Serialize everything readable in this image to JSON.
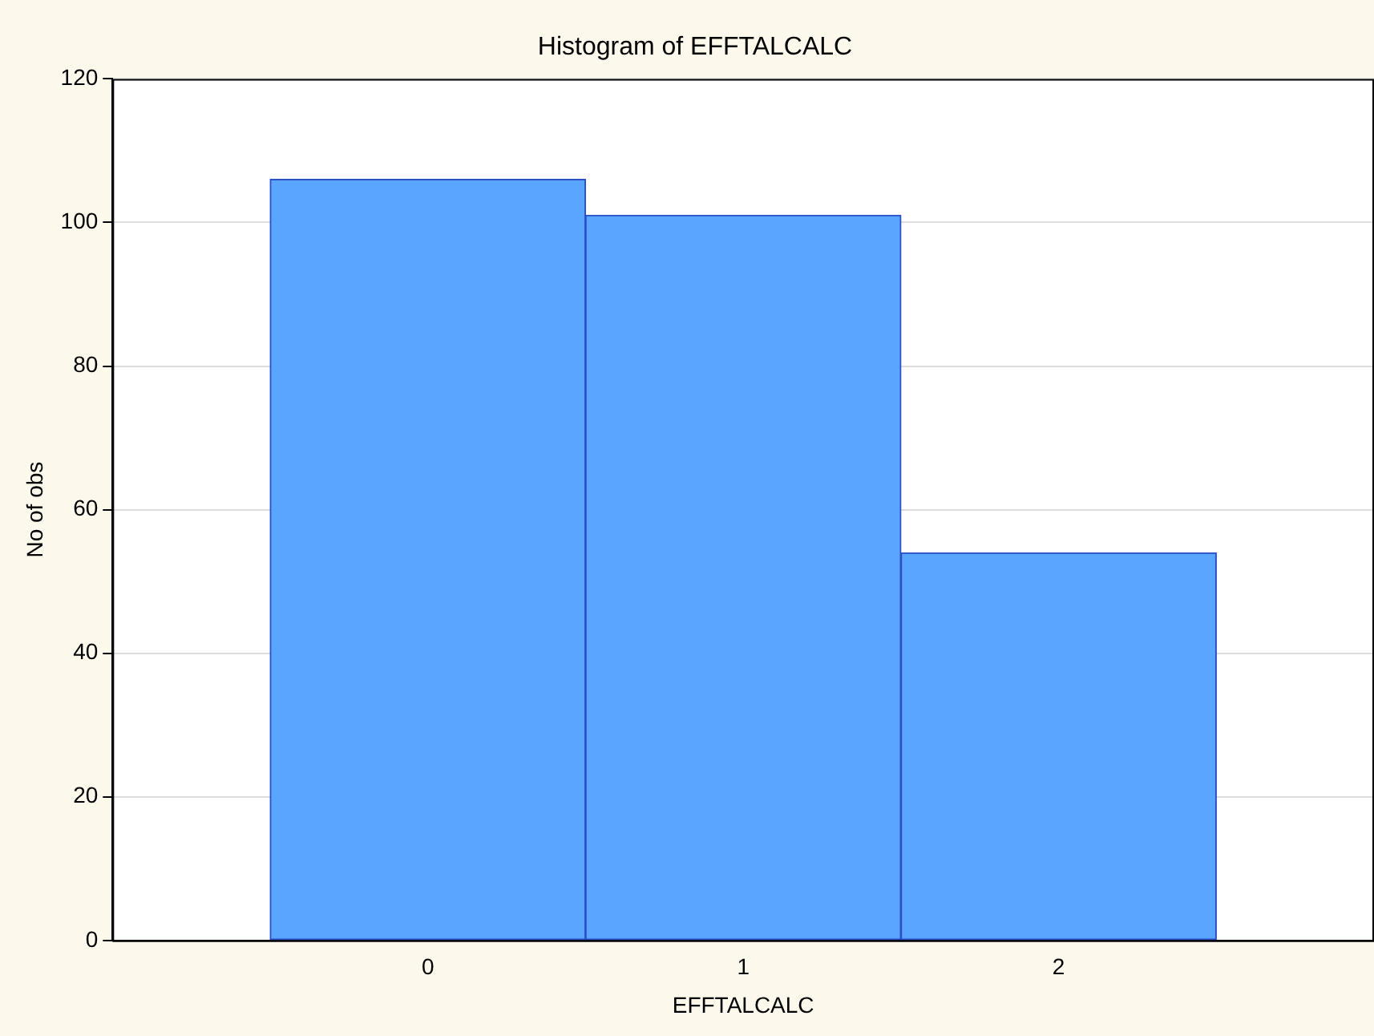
{
  "chart_data": {
    "type": "bar",
    "title": "Histogram of EFFTALCALC",
    "xlabel": "EFFTALCALC",
    "ylabel": "No of obs",
    "categories": [
      "0",
      "1",
      "2"
    ],
    "values": [
      106,
      101,
      54
    ],
    "color": "#5aa5ff",
    "ylim": [
      0,
      120
    ],
    "yticks": [
      0,
      20,
      40,
      60,
      80,
      100,
      120
    ],
    "grid": "y",
    "legend": false
  }
}
